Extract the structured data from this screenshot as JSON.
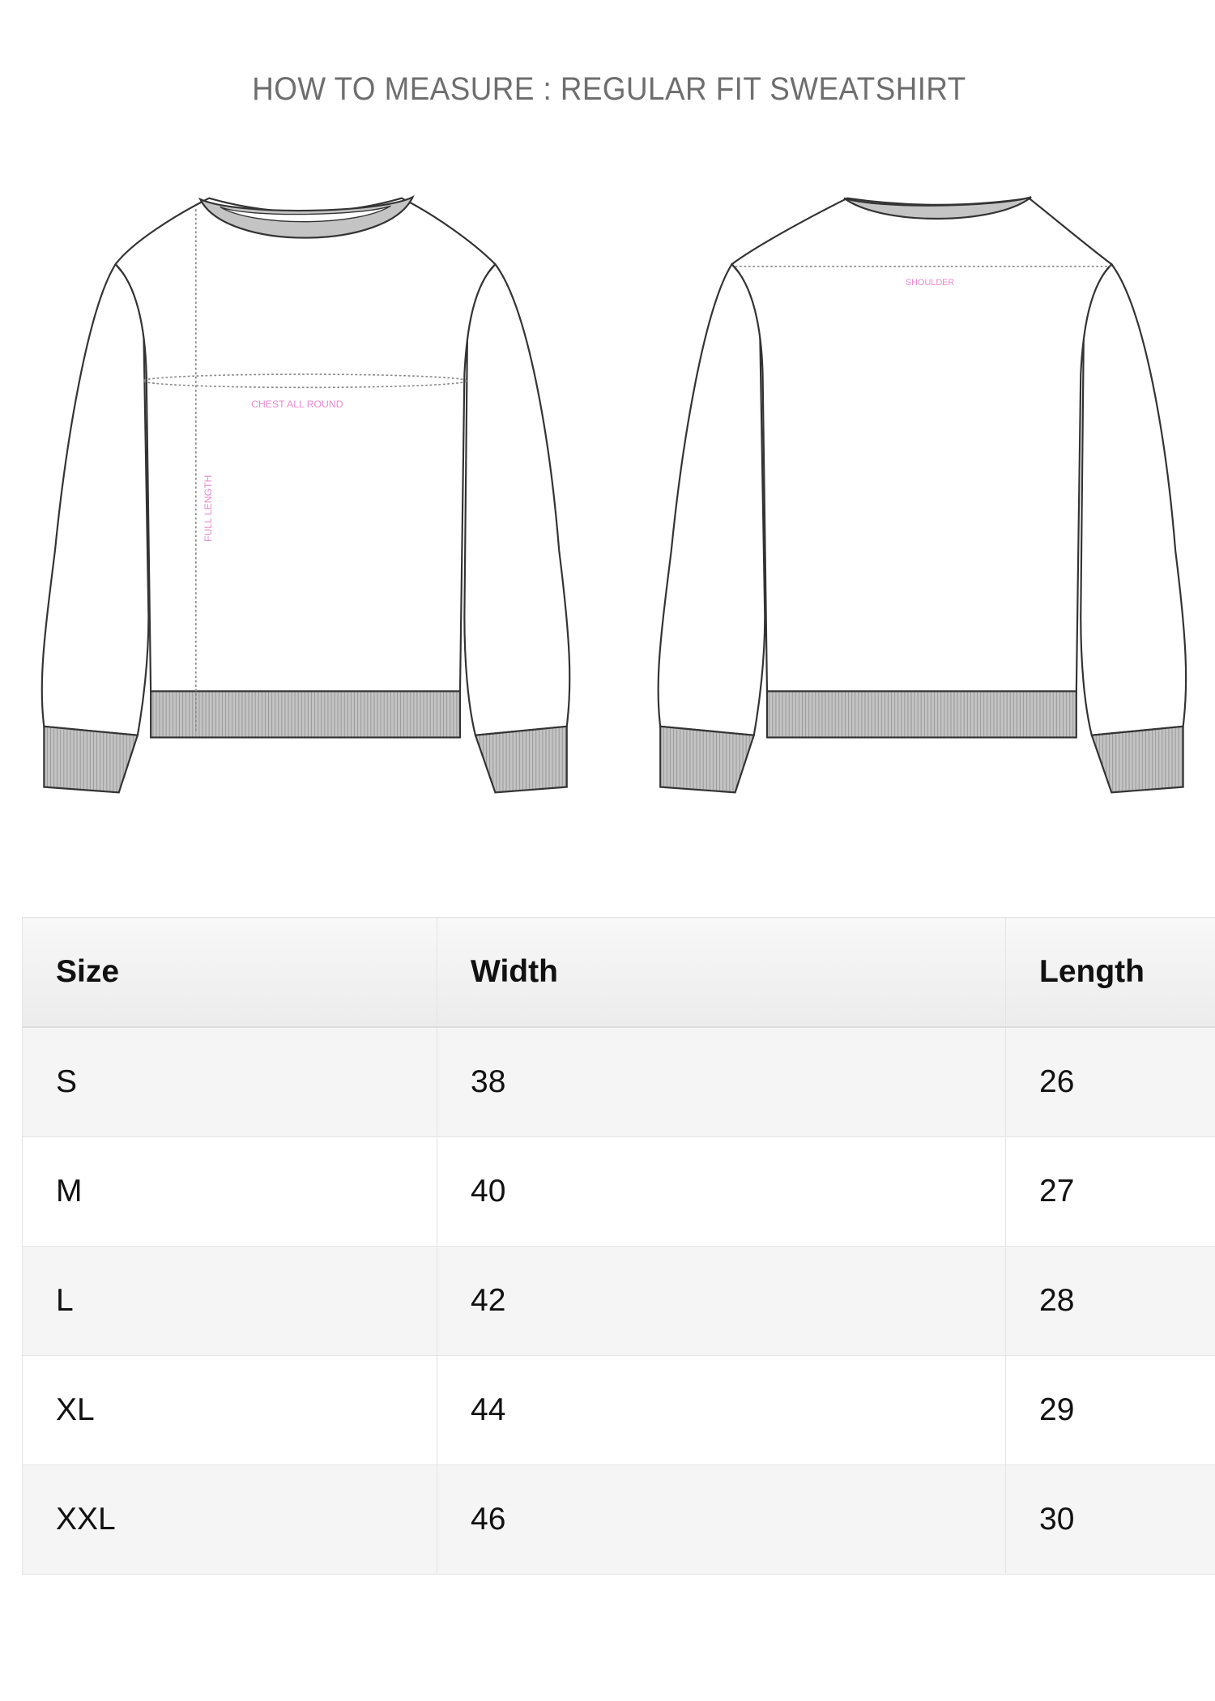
{
  "title": "HOW TO MEASURE : REGULAR FIT SWEATSHIRT",
  "diagram": {
    "front_labels": {
      "chest": "CHEST ALL ROUND",
      "length": "FULL LENGTH"
    },
    "back_labels": {
      "shoulder": "SHOULDER"
    },
    "label_color": "#e98bd0"
  },
  "size_table": {
    "headers": [
      "Size",
      "Width",
      "Length"
    ],
    "rows": [
      [
        "S",
        "38",
        "26"
      ],
      [
        "M",
        "40",
        "27"
      ],
      [
        "L",
        "42",
        "28"
      ],
      [
        "XL",
        "44",
        "29"
      ],
      [
        "XXL",
        "46",
        "30"
      ]
    ]
  }
}
